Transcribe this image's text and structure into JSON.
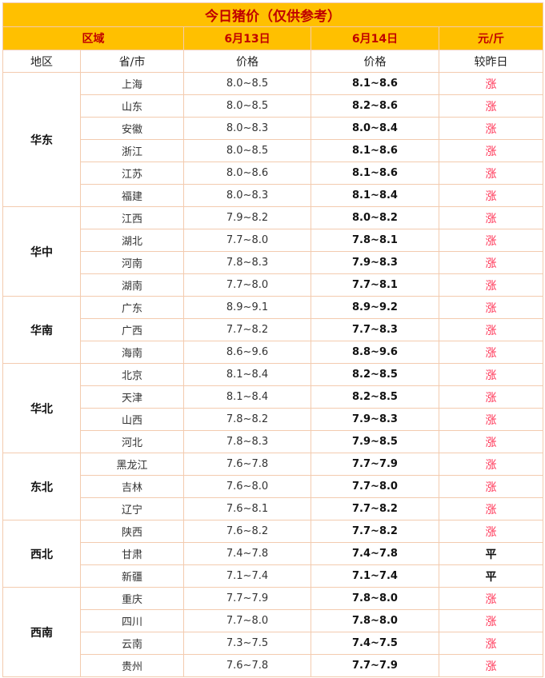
{
  "title": "今日猪价（仅供参考）",
  "header": {
    "area": "区域",
    "date1": "6月13日",
    "date2": "6月14日",
    "unit": "元/斤"
  },
  "subheader": {
    "region": "地区",
    "province": "省/市",
    "price1": "价格",
    "price2": "价格",
    "change": "较昨日"
  },
  "colors": {
    "header_bg": "#FFC000",
    "header_text": "#C00000",
    "up": "#FF3355",
    "border": "#F3CBAF"
  },
  "groups": [
    {
      "region": "华东",
      "rows": [
        {
          "province": "上海",
          "jun13": "8.0~8.5",
          "jun14": "8.1~8.6",
          "change": "涨"
        },
        {
          "province": "山东",
          "jun13": "8.0~8.5",
          "jun14": "8.2~8.6",
          "change": "涨"
        },
        {
          "province": "安徽",
          "jun13": "8.0~8.3",
          "jun14": "8.0~8.4",
          "change": "涨"
        },
        {
          "province": "浙江",
          "jun13": "8.0~8.5",
          "jun14": "8.1~8.6",
          "change": "涨"
        },
        {
          "province": "江苏",
          "jun13": "8.0~8.6",
          "jun14": "8.1~8.6",
          "change": "涨"
        },
        {
          "province": "福建",
          "jun13": "8.0~8.3",
          "jun14": "8.1~8.4",
          "change": "涨"
        }
      ]
    },
    {
      "region": "华中",
      "rows": [
        {
          "province": "江西",
          "jun13": "7.9~8.2",
          "jun14": "8.0~8.2",
          "change": "涨"
        },
        {
          "province": "湖北",
          "jun13": "7.7~8.0",
          "jun14": "7.8~8.1",
          "change": "涨"
        },
        {
          "province": "河南",
          "jun13": "7.8~8.3",
          "jun14": "7.9~8.3",
          "change": "涨"
        },
        {
          "province": "湖南",
          "jun13": "7.7~8.0",
          "jun14": "7.7~8.1",
          "change": "涨"
        }
      ]
    },
    {
      "region": "华南",
      "rows": [
        {
          "province": "广东",
          "jun13": "8.9~9.1",
          "jun14": "8.9~9.2",
          "change": "涨"
        },
        {
          "province": "广西",
          "jun13": "7.7~8.2",
          "jun14": "7.7~8.3",
          "change": "涨"
        },
        {
          "province": "海南",
          "jun13": "8.6~9.6",
          "jun14": "8.8~9.6",
          "change": "涨"
        }
      ]
    },
    {
      "region": "华北",
      "rows": [
        {
          "province": "北京",
          "jun13": "8.1~8.4",
          "jun14": "8.2~8.5",
          "change": "涨"
        },
        {
          "province": "天津",
          "jun13": "8.1~8.4",
          "jun14": "8.2~8.5",
          "change": "涨"
        },
        {
          "province": "山西",
          "jun13": "7.8~8.2",
          "jun14": "7.9~8.3",
          "change": "涨"
        },
        {
          "province": "河北",
          "jun13": "7.8~8.3",
          "jun14": "7.9~8.5",
          "change": "涨"
        }
      ]
    },
    {
      "region": "东北",
      "rows": [
        {
          "province": "黑龙江",
          "jun13": "7.6~7.8",
          "jun14": "7.7~7.9",
          "change": "涨"
        },
        {
          "province": "吉林",
          "jun13": "7.6~8.0",
          "jun14": "7.7~8.0",
          "change": "涨"
        },
        {
          "province": "辽宁",
          "jun13": "7.6~8.1",
          "jun14": "7.7~8.2",
          "change": "涨"
        }
      ]
    },
    {
      "region": "西北",
      "rows": [
        {
          "province": "陕西",
          "jun13": "7.6~8.2",
          "jun14": "7.7~8.2",
          "change": "涨"
        },
        {
          "province": "甘肃",
          "jun13": "7.4~7.8",
          "jun14": "7.4~7.8",
          "change": "平"
        },
        {
          "province": "新疆",
          "jun13": "7.1~7.4",
          "jun14": "7.1~7.4",
          "change": "平"
        }
      ]
    },
    {
      "region": "西南",
      "rows": [
        {
          "province": "重庆",
          "jun13": "7.7~7.9",
          "jun14": "7.8~8.0",
          "change": "涨"
        },
        {
          "province": "四川",
          "jun13": "7.7~8.0",
          "jun14": "7.8~8.0",
          "change": "涨"
        },
        {
          "province": "云南",
          "jun13": "7.3~7.5",
          "jun14": "7.4~7.5",
          "change": "涨"
        },
        {
          "province": "贵州",
          "jun13": "7.6~7.8",
          "jun14": "7.7~7.9",
          "change": "涨"
        }
      ]
    }
  ]
}
